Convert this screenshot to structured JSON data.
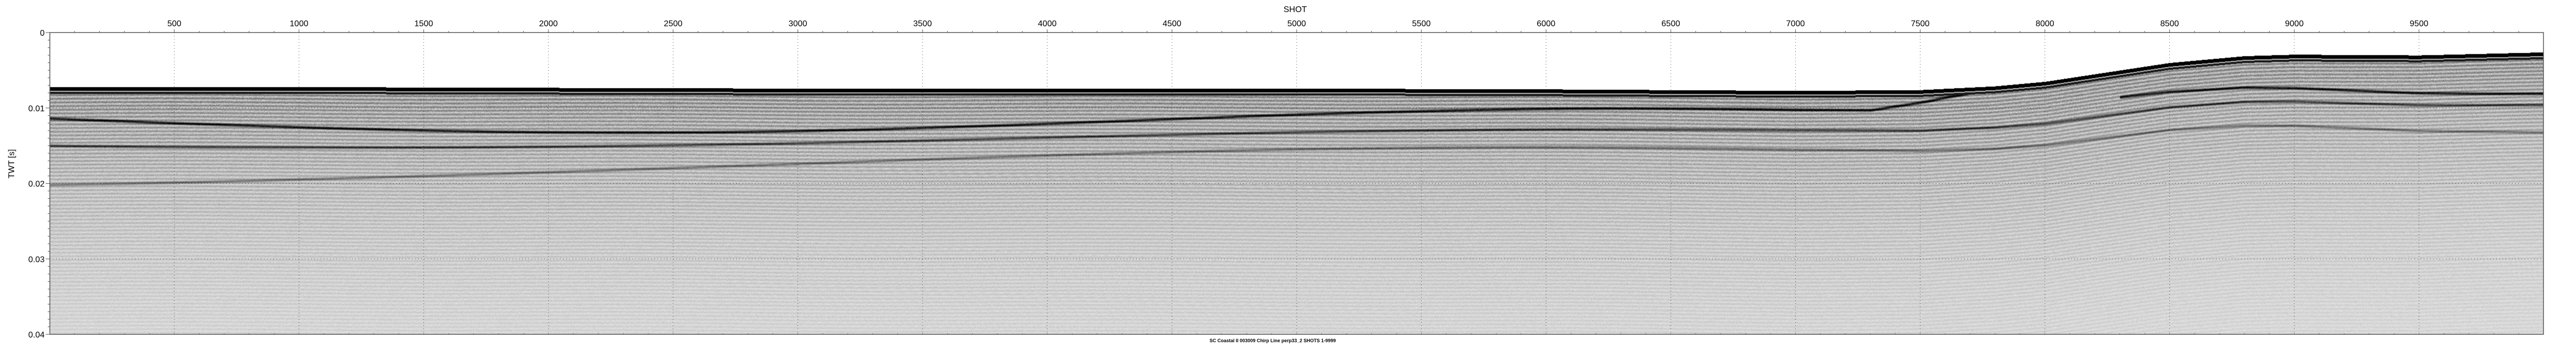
{
  "chart_data": {
    "type": "heatmap",
    "subtype": "seismic-section",
    "title": "",
    "caption": "SC Coastal II 003009 Chirp Line perp33_2 SHOTS 1-9999",
    "xlabel": "SHOT",
    "ylabel": "TWT [s]",
    "xlim": [
      1,
      9999
    ],
    "ylim": [
      0,
      0.04
    ],
    "y_inverted": true,
    "x_axis_position": "top",
    "x_ticks": [
      500,
      1000,
      1500,
      2000,
      2500,
      3000,
      3500,
      4000,
      4500,
      5000,
      5500,
      6000,
      6500,
      7000,
      7500,
      8000,
      8500,
      9000,
      9500
    ],
    "y_ticks": [
      0,
      0.01,
      0.02,
      0.03,
      0.04
    ],
    "y_tick_labels": [
      "0",
      "0.01",
      "0.02",
      "0.03",
      "0.04"
    ],
    "grid": "dotted at major ticks",
    "colormap": "grayscale",
    "seafloor_twt": {
      "shot": [
        1,
        1000,
        2000,
        3000,
        4000,
        5000,
        6000,
        7000,
        7500,
        7800,
        8000,
        8300,
        8500,
        8800,
        9000,
        9500,
        9999
      ],
      "twt": [
        0.0072,
        0.0072,
        0.0073,
        0.0074,
        0.0074,
        0.0074,
        0.0075,
        0.0077,
        0.0076,
        0.0071,
        0.0065,
        0.005,
        0.004,
        0.0031,
        0.0029,
        0.003,
        0.0026
      ]
    }
  },
  "colors": {
    "background": "#ffffff",
    "axis": "#555555",
    "text": "#000000"
  }
}
